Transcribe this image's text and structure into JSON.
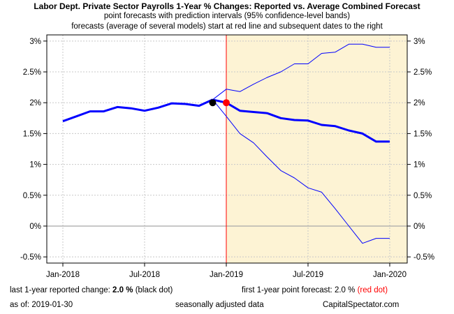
{
  "chart_data": {
    "type": "line",
    "title": "Labor Dept. Private Sector Payrolls 1-Year % Changes: Reported vs. Average Combined Forecast",
    "subtitle_1": "point forecasts with prediction intervals (95% confidence-level bands)",
    "subtitle_2": "forecasts (average of several models) start at red line and subsequent dates to the right",
    "xlabel": "",
    "ylabel": "",
    "x_ticks": [
      "Jan-2018",
      "Jul-2018",
      "Jan-2019",
      "Jul-2019",
      "Jan-2020"
    ],
    "y_ticks_left": [
      "-0.5%",
      "0%",
      "0.5%",
      "1%",
      "1.5%",
      "2%",
      "2.5%",
      "3%"
    ],
    "y_ticks_right": [
      "-0.5%",
      "0%",
      "0.5%",
      "1%",
      "1.5%",
      "2%",
      "2.5%",
      "3%"
    ],
    "ylim": [
      -0.6,
      3.1
    ],
    "grid": true,
    "forecast_start": "2019-01",
    "forecast_shading_color": "#fdf3d4",
    "series": [
      {
        "color": "#0000ff",
        "x": [
          "2018-01",
          "2018-02",
          "2018-03",
          "2018-04",
          "2018-05",
          "2018-06",
          "2018-07",
          "2018-08",
          "2018-09",
          "2018-10",
          "2018-11",
          "2018-12"
        ],
        "values": [
          1.7,
          1.78,
          1.86,
          1.86,
          1.93,
          1.91,
          1.87,
          1.92,
          1.99,
          1.98,
          1.95,
          2.05
        ]
      },
      {
        "color": "#0000ff",
        "x": [
          "2018-12",
          "2019-01",
          "2019-02",
          "2019-03",
          "2019-04",
          "2019-05",
          "2019-06",
          "2019-07",
          "2019-08",
          "2019-09",
          "2019-10",
          "2019-11",
          "2019-12",
          "2020-01"
        ],
        "values": [
          2.05,
          2.0,
          1.87,
          1.85,
          1.83,
          1.75,
          1.72,
          1.71,
          1.64,
          1.62,
          1.55,
          1.5,
          1.37,
          1.37
        ]
      },
      {
        "color": "#0000ff",
        "x": [
          "2018-12",
          "2019-01",
          "2019-02",
          "2019-03",
          "2019-04",
          "2019-05",
          "2019-06",
          "2019-07",
          "2019-08",
          "2019-09",
          "2019-10",
          "2019-11",
          "2019-12",
          "2020-01"
        ],
        "values": [
          2.05,
          2.22,
          2.18,
          2.3,
          2.41,
          2.5,
          2.63,
          2.63,
          2.8,
          2.82,
          2.95,
          2.95,
          2.9,
          2.9
        ]
      },
      {
        "color": "#0000ff",
        "x": [
          "2018-12",
          "2019-01",
          "2019-02",
          "2019-03",
          "2019-04",
          "2019-05",
          "2019-06",
          "2019-07",
          "2019-08",
          "2019-09",
          "2019-10",
          "2019-11",
          "2019-12",
          "2020-01"
        ],
        "values": [
          2.05,
          1.78,
          1.5,
          1.35,
          1.12,
          0.9,
          0.78,
          0.62,
          0.55,
          0.28,
          0.0,
          -0.28,
          -0.2,
          -0.2
        ]
      }
    ],
    "reported_dot": {
      "x": "2018-12",
      "value": 2.0,
      "color": "#000000"
    },
    "forecast_dot": {
      "x": "2019-01",
      "value": 2.0,
      "color": "#ff0000"
    }
  },
  "footer": {
    "last_change_label": "last 1-year reported change:",
    "last_change_value": "2.0",
    "last_change_unit": "%",
    "last_change_note": "(black dot)",
    "first_forecast_label": "first 1-year point forecast:",
    "first_forecast_value": "2.0",
    "first_forecast_unit": "%",
    "first_forecast_note": "(red dot)",
    "as_of_label": "as of:",
    "as_of_date": "2019-01-30",
    "seasonal_note": "seasonally adjusted data",
    "source": "CapitalSpectator.com"
  }
}
